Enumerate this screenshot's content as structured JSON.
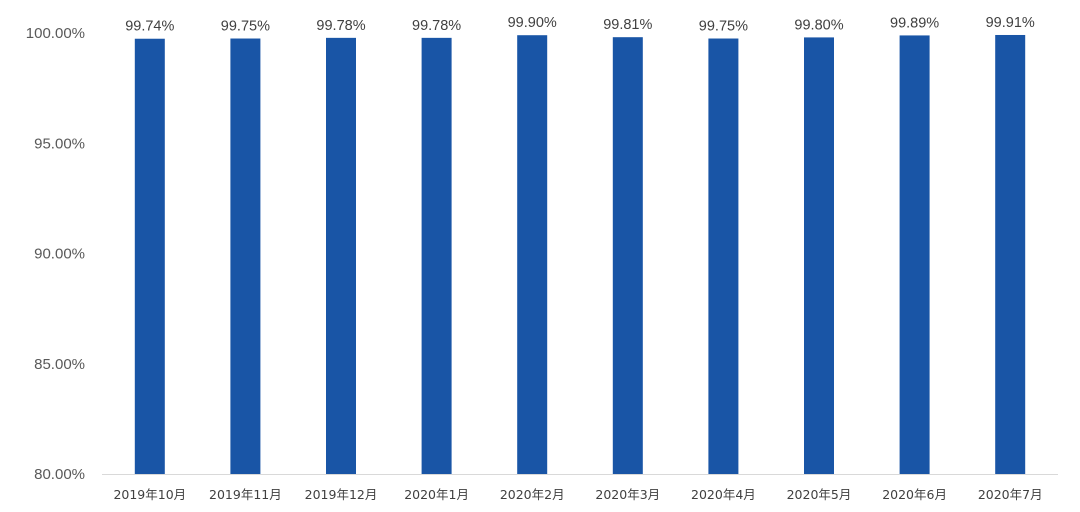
{
  "chart_data": {
    "type": "bar",
    "title": "",
    "xlabel": "",
    "ylabel": "",
    "ylim": [
      80,
      100
    ],
    "yticks": [
      80,
      85,
      90,
      95,
      100
    ],
    "ytick_labels": [
      "80.00%",
      "85.00%",
      "90.00%",
      "95.00%",
      "100.00%"
    ],
    "grid": false,
    "legend": "none",
    "bar_color": "#1955A6",
    "categories": [
      "2019年10月",
      "2019年11月",
      "2019年12月",
      "2020年1月",
      "2020年2月",
      "2020年3月",
      "2020年4月",
      "2020年5月",
      "2020年6月",
      "2020年7月"
    ],
    "values": [
      99.74,
      99.75,
      99.78,
      99.78,
      99.9,
      99.81,
      99.75,
      99.8,
      99.89,
      99.91
    ],
    "data_labels": [
      "99.74%",
      "99.75%",
      "99.78%",
      "99.78%",
      "99.90%",
      "99.81%",
      "99.75%",
      "99.80%",
      "99.89%",
      "99.91%"
    ]
  }
}
